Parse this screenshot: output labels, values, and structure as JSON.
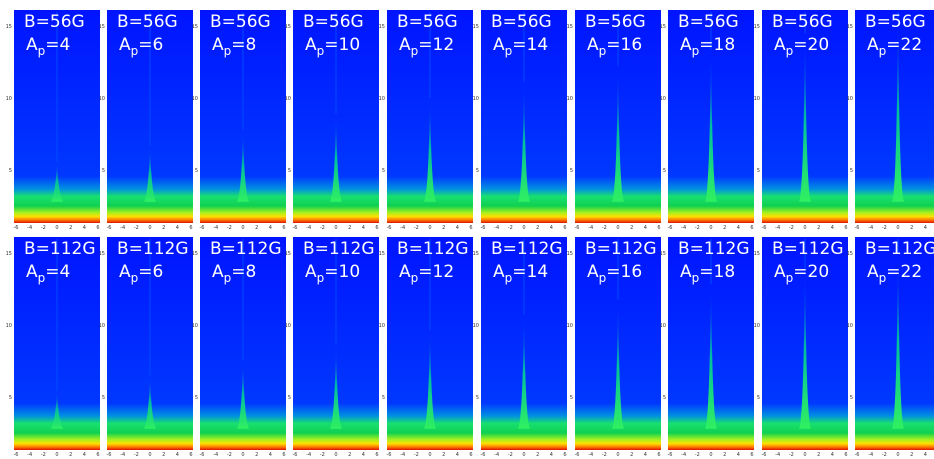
{
  "rows": [
    {
      "field": "B=56G",
      "amplitudes": [
        "=4",
        "=6",
        "=8",
        "=10",
        "=12",
        "=14",
        "=16",
        "=18",
        "=20",
        "=22"
      ]
    },
    {
      "field": "B=112G",
      "amplitudes": [
        "=4",
        "=6",
        "=8",
        "=10",
        "=12",
        "=14",
        "=16",
        "=18",
        "=20",
        "=22"
      ]
    }
  ],
  "amp_symbol": "A",
  "amp_subscript": "p",
  "yticks": [
    "15",
    "10",
    "5"
  ],
  "xticks": [
    "-6",
    "-4",
    "-2",
    "0",
    "2",
    "4",
    "6"
  ]
}
